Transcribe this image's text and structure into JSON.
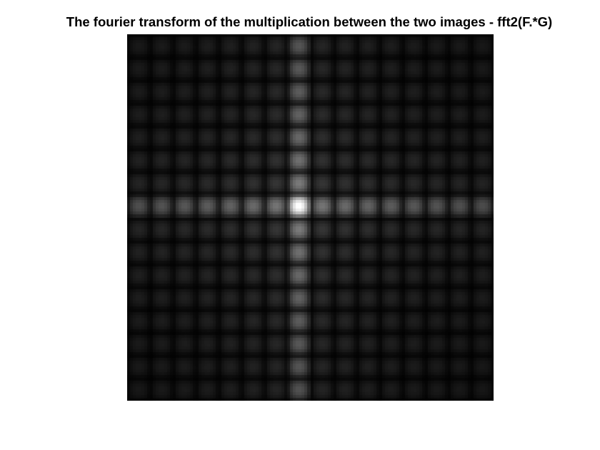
{
  "figure": {
    "title": "The fourier transform of the multiplication between the two images - fft2(F.*G)"
  },
  "image": {
    "colormap": "gray",
    "grid_cells": 16,
    "bright_column_index": 7,
    "bright_row_index": 7,
    "background_color": "#ffffff",
    "cell_line_color": "#000000"
  }
}
